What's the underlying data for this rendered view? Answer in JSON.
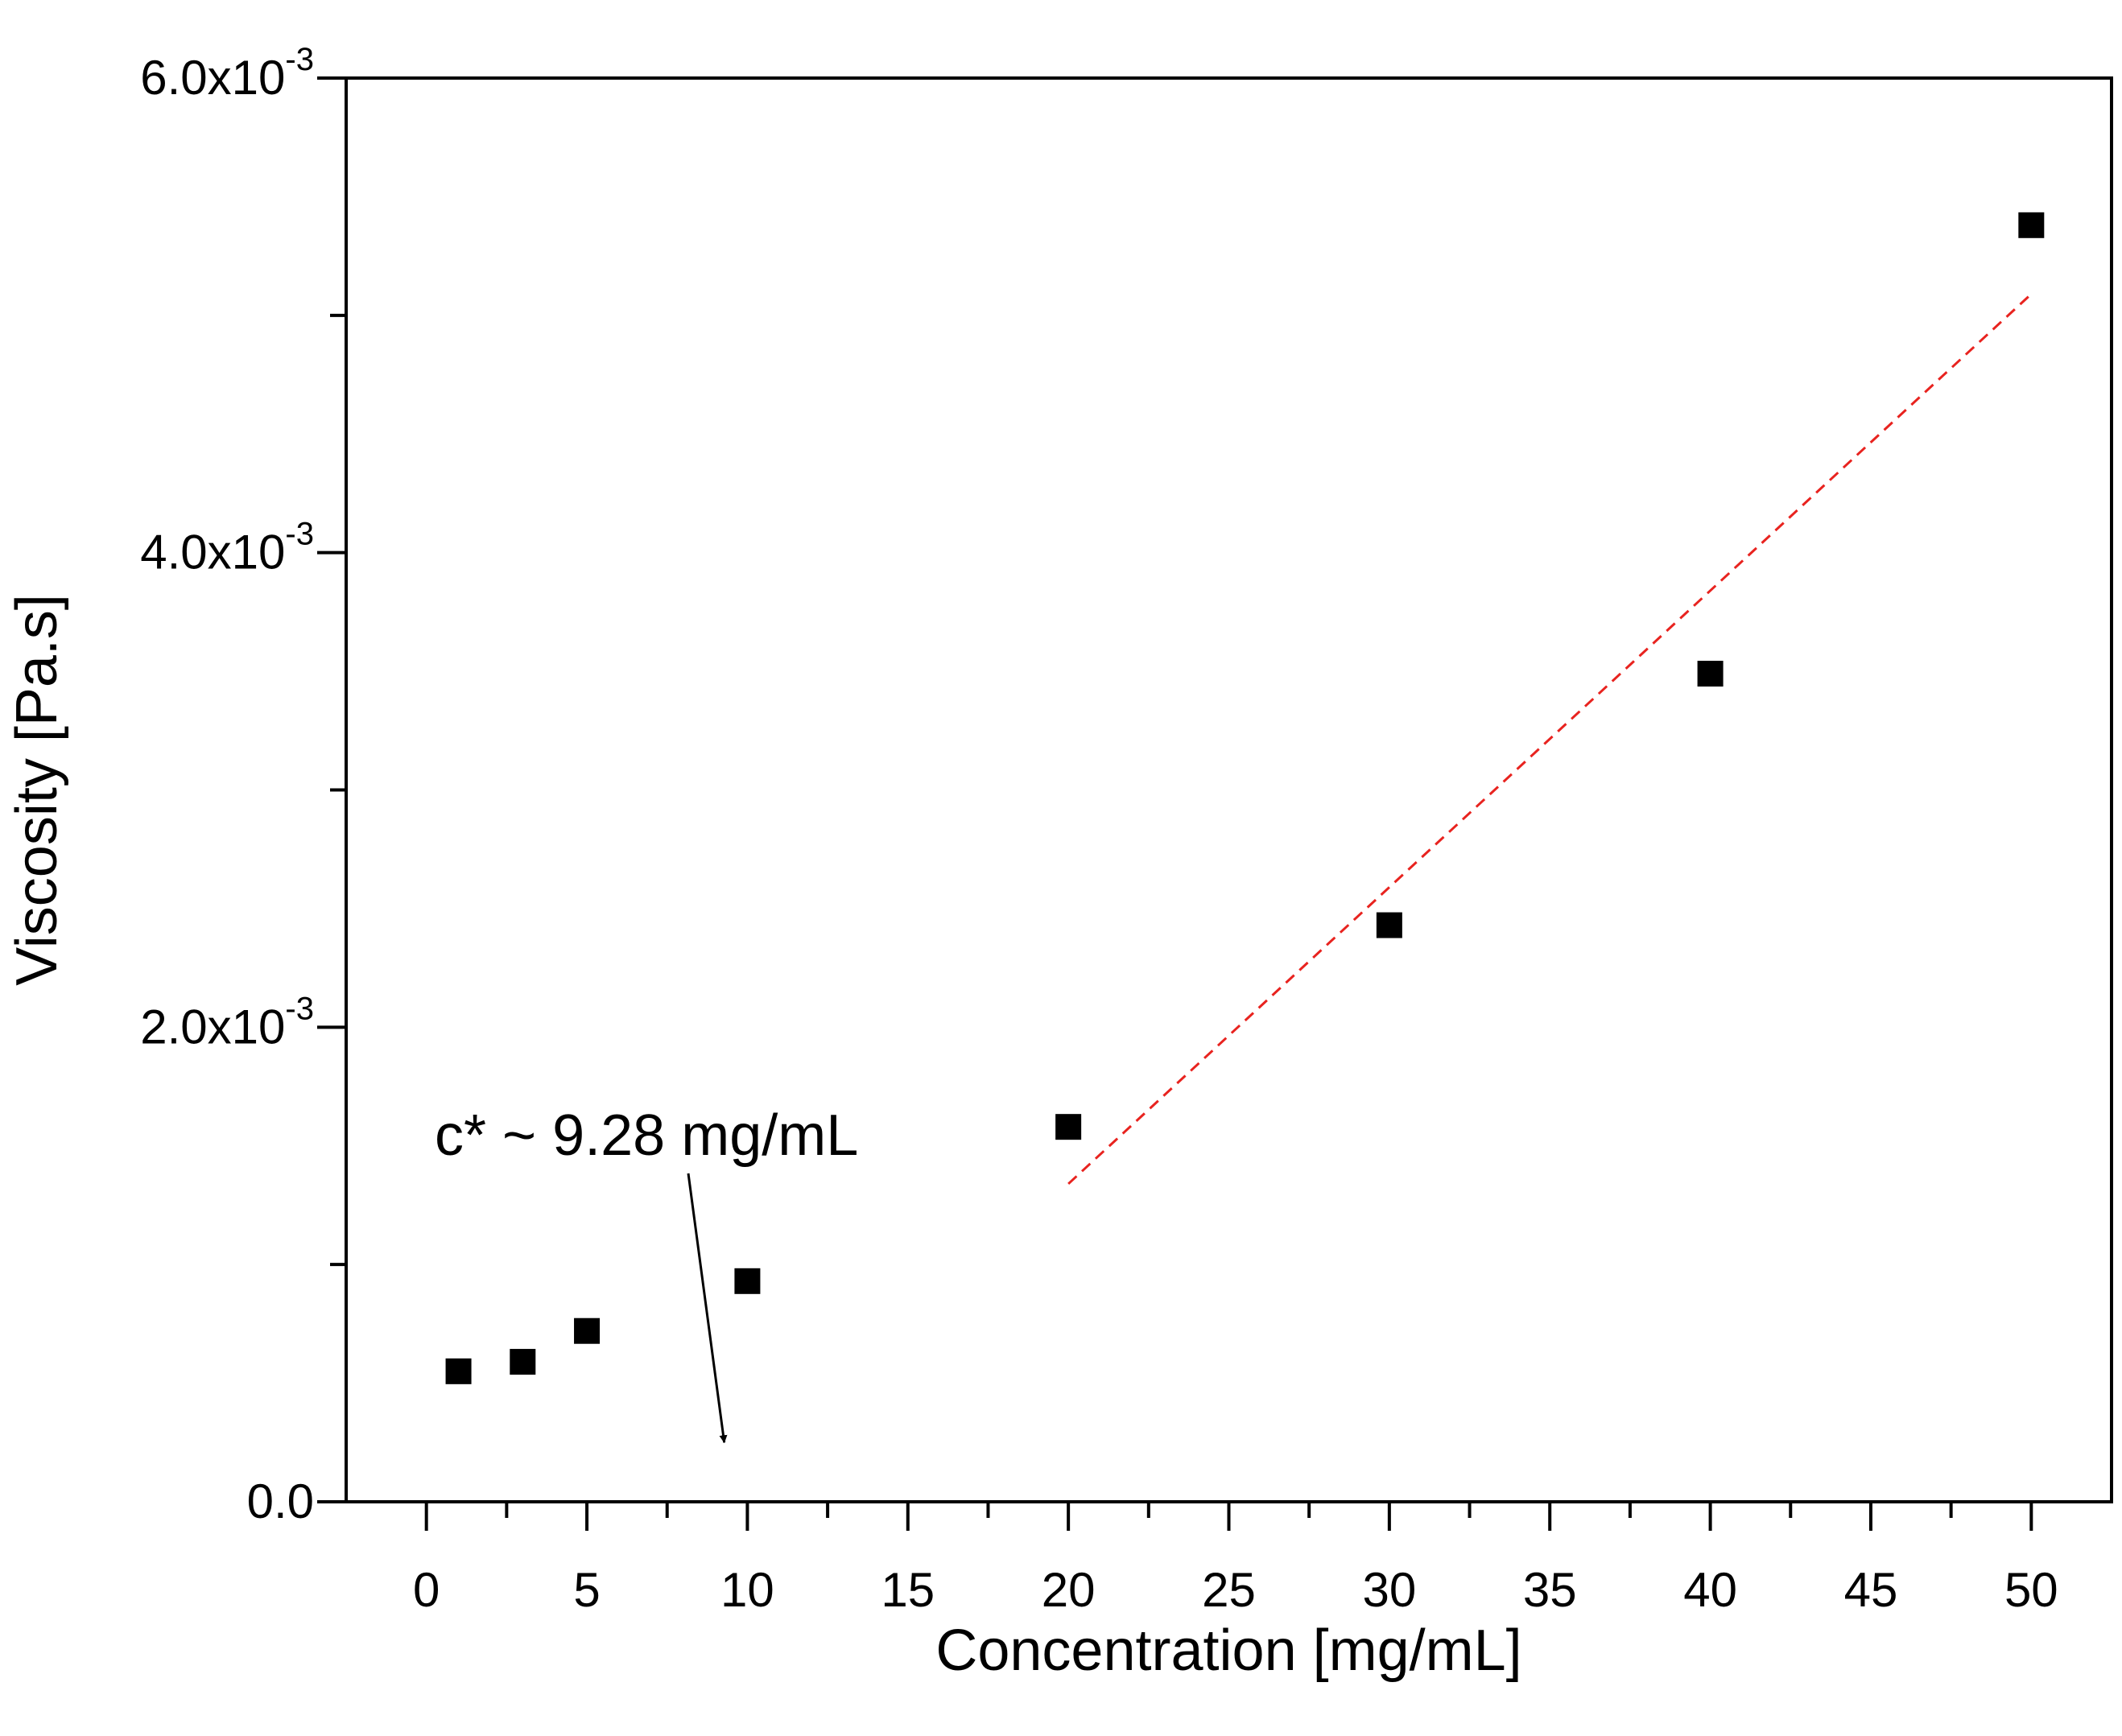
{
  "chart_data": {
    "type": "scatter",
    "title": "",
    "xlabel": "Concentration [mg/mL]",
    "ylabel": "Viscosity [Pa.s]",
    "xlim": [
      -2.5,
      52.5
    ],
    "ylim": [
      0,
      0.006
    ],
    "x_ticks": [
      0,
      5,
      10,
      15,
      20,
      25,
      30,
      35,
      40,
      45,
      50
    ],
    "y_major_ticks": [
      0,
      0.002,
      0.004,
      0.006
    ],
    "y_minor_ticks": [
      0.001,
      0.003,
      0.005
    ],
    "y_tick_labels": [
      {
        "value": 0,
        "mantissa": "0.0",
        "exponent": ""
      },
      {
        "value": 0.002,
        "mantissa": "2.0x10",
        "exponent": "-3"
      },
      {
        "value": 0.004,
        "mantissa": "4.0x10",
        "exponent": "-3"
      },
      {
        "value": 0.006,
        "mantissa": "6.0x10",
        "exponent": "-3"
      }
    ],
    "grid": false,
    "series": [
      {
        "name": "Viscosity",
        "marker": "square",
        "color": "#000000",
        "x": [
          1,
          3,
          5,
          10,
          20,
          30,
          40,
          50
        ],
        "y": [
          0.00055,
          0.00059,
          0.00072,
          0.00093,
          0.00158,
          0.00243,
          0.00349,
          0.00538
        ]
      }
    ],
    "fit_line": {
      "name": "linear fit",
      "color": "#e8231f",
      "style": "dashed",
      "x": [
        20,
        50
      ],
      "y": [
        0.00134,
        0.00509
      ]
    },
    "annotation": {
      "text": "c* ~ 9.28 mg/mL",
      "arrow_target": {
        "x": 9.28,
        "y": 0.00025
      }
    }
  }
}
